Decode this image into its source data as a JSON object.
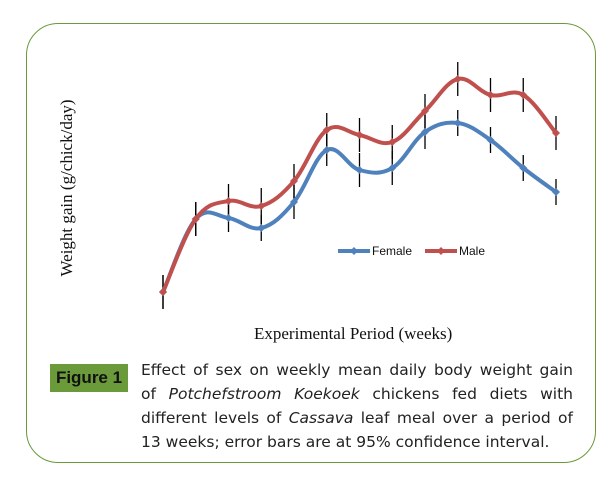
{
  "figure": {
    "label": "Figure 1",
    "caption_lines": [
      [
        {
          "t": "Effect of sex on weekly mean daily body weight gain",
          "i": false
        }
      ],
      [
        {
          "t": "of ",
          "i": false
        },
        {
          "t": "Potchefstroom Koekoek",
          "i": true
        },
        {
          "t": " chickens fed diets with",
          "i": false
        }
      ],
      [
        {
          "t": "different levels of ",
          "i": false
        },
        {
          "t": "Cassava",
          "i": true
        },
        {
          "t": " leaf meal over a period of",
          "i": false
        }
      ],
      [
        {
          "t": "13 weeks; error bars are at 95% confidence interval.",
          "i": false
        }
      ]
    ],
    "frame_color": "#6a9a3a",
    "label_bg_color": "#6a9a3a"
  },
  "chart_data": {
    "type": "line",
    "title": "",
    "xlabel": "Experimental Period (weeks)",
    "ylabel": "Weight gain (g/chick/day)",
    "x": [
      1,
      2,
      3,
      4,
      5,
      6,
      7,
      8,
      9,
      10,
      11,
      12,
      13
    ],
    "x_tick_labels_shown": false,
    "y_tick_labels_shown": false,
    "ylim": [
      0,
      25
    ],
    "note": "No axis ticks are printed; values are relative estimates read from vertical positions.",
    "grid": false,
    "smooth": true,
    "legend": {
      "position": "center",
      "entries": [
        "Female",
        "Male"
      ]
    },
    "series": [
      {
        "name": "Female",
        "color": "#4f81bd",
        "values": [
          1.8,
          9.1,
          9.2,
          8.2,
          10.8,
          16.0,
          14.0,
          14.2,
          17.8,
          18.7,
          17.0,
          14.2,
          11.8
        ],
        "error": [
          1.7,
          1.7,
          1.4,
          1.3,
          1.7,
          1.6,
          1.7,
          1.7,
          1.7,
          1.3,
          1.3,
          1.3,
          1.3
        ]
      },
      {
        "name": "Male",
        "color": "#c0504d",
        "values": [
          1.8,
          9.1,
          10.9,
          10.4,
          12.9,
          18.0,
          17.5,
          16.8,
          19.9,
          23.1,
          21.5,
          21.5,
          17.7
        ],
        "error": [
          1.7,
          1.7,
          1.7,
          1.8,
          1.7,
          1.7,
          1.7,
          1.7,
          1.7,
          1.7,
          1.7,
          1.7,
          1.7
        ]
      }
    ],
    "error_bar_color": "#000000"
  }
}
